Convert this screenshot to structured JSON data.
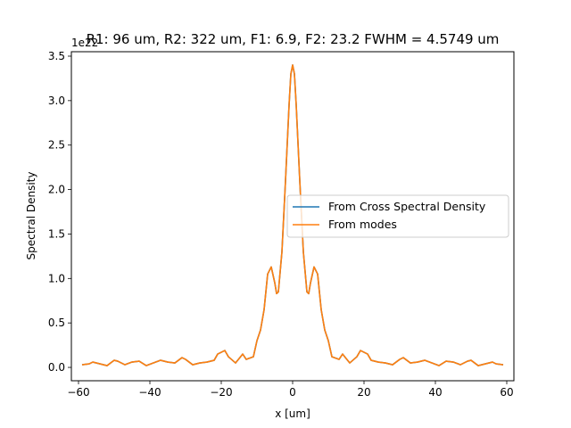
{
  "chart_data": {
    "type": "line",
    "title": "R1: 96 um, R2: 322 um, F1:  6.9, F2: 23.2  FWHM = 4.5749 um",
    "xlabel": "x [um]",
    "ylabel": "Spectral Density",
    "offset_text": "1e22",
    "xlim": [
      -62,
      62
    ],
    "ylim": [
      -0.15,
      3.55
    ],
    "xticks": [
      -60,
      -40,
      -20,
      0,
      20,
      40,
      60
    ],
    "yticks": [
      0.0,
      0.5,
      1.0,
      1.5,
      2.0,
      2.5,
      3.0,
      3.5
    ],
    "xtick_labels": [
      "−60",
      "−40",
      "−20",
      "0",
      "20",
      "40",
      "60"
    ],
    "ytick_labels": [
      "0.0",
      "0.5",
      "1.0",
      "1.5",
      "2.0",
      "2.5",
      "3.0",
      "3.5"
    ],
    "grid": false,
    "legend_position": "center-right",
    "series": [
      {
        "name": "From Cross Spectral Density",
        "color": "#1f77b4",
        "x": [
          -59,
          -57,
          -56,
          -54,
          -52,
          -50,
          -49,
          -47,
          -45,
          -43,
          -41,
          -39,
          -37,
          -35,
          -33,
          -31,
          -30,
          -28,
          -26,
          -24,
          -22,
          -21,
          -19,
          -18,
          -16,
          -15,
          -14,
          -13,
          -11,
          -10,
          -9,
          -8,
          -7,
          -6,
          -5,
          -4.5,
          -4,
          -3,
          -2,
          -1,
          -0.5,
          0,
          0.5,
          1,
          2,
          3,
          4,
          4.5,
          5,
          6,
          7,
          8,
          9,
          10,
          11,
          13,
          14,
          15,
          16,
          18,
          19,
          21,
          22,
          24,
          26,
          28,
          30,
          31,
          33,
          35,
          37,
          39,
          41,
          43,
          45,
          47,
          49,
          50,
          52,
          54,
          56,
          57,
          59
        ],
        "y": [
          0.03,
          0.04,
          0.06,
          0.04,
          0.02,
          0.08,
          0.07,
          0.03,
          0.06,
          0.07,
          0.02,
          0.05,
          0.08,
          0.06,
          0.05,
          0.11,
          0.09,
          0.03,
          0.05,
          0.06,
          0.08,
          0.15,
          0.19,
          0.12,
          0.05,
          0.1,
          0.15,
          0.09,
          0.12,
          0.3,
          0.42,
          0.65,
          1.05,
          1.13,
          0.95,
          0.83,
          0.85,
          1.3,
          2.1,
          2.95,
          3.3,
          3.4,
          3.3,
          2.95,
          2.1,
          1.3,
          0.85,
          0.83,
          0.95,
          1.13,
          1.05,
          0.65,
          0.42,
          0.3,
          0.12,
          0.09,
          0.15,
          0.1,
          0.05,
          0.12,
          0.19,
          0.15,
          0.08,
          0.06,
          0.05,
          0.03,
          0.09,
          0.11,
          0.05,
          0.06,
          0.08,
          0.05,
          0.02,
          0.07,
          0.06,
          0.03,
          0.07,
          0.08,
          0.02,
          0.04,
          0.06,
          0.04,
          0.03
        ]
      },
      {
        "name": "From modes",
        "color": "#ff7f0e",
        "x": [
          -59,
          -57,
          -56,
          -54,
          -52,
          -50,
          -49,
          -47,
          -45,
          -43,
          -41,
          -39,
          -37,
          -35,
          -33,
          -31,
          -30,
          -28,
          -26,
          -24,
          -22,
          -21,
          -19,
          -18,
          -16,
          -15,
          -14,
          -13,
          -11,
          -10,
          -9,
          -8,
          -7,
          -6,
          -5,
          -4.5,
          -4,
          -3,
          -2,
          -1,
          -0.5,
          0,
          0.5,
          1,
          2,
          3,
          4,
          4.5,
          5,
          6,
          7,
          8,
          9,
          10,
          11,
          13,
          14,
          15,
          16,
          18,
          19,
          21,
          22,
          24,
          26,
          28,
          30,
          31,
          33,
          35,
          37,
          39,
          41,
          43,
          45,
          47,
          49,
          50,
          52,
          54,
          56,
          57,
          59
        ],
        "y": [
          0.03,
          0.04,
          0.06,
          0.04,
          0.02,
          0.08,
          0.07,
          0.03,
          0.06,
          0.07,
          0.02,
          0.05,
          0.08,
          0.06,
          0.05,
          0.11,
          0.09,
          0.03,
          0.05,
          0.06,
          0.08,
          0.15,
          0.19,
          0.12,
          0.05,
          0.1,
          0.15,
          0.09,
          0.12,
          0.3,
          0.42,
          0.65,
          1.05,
          1.13,
          0.95,
          0.83,
          0.85,
          1.3,
          2.1,
          2.95,
          3.3,
          3.4,
          3.3,
          2.95,
          2.1,
          1.3,
          0.85,
          0.83,
          0.95,
          1.13,
          1.05,
          0.65,
          0.42,
          0.3,
          0.12,
          0.09,
          0.15,
          0.1,
          0.05,
          0.12,
          0.19,
          0.15,
          0.08,
          0.06,
          0.05,
          0.03,
          0.09,
          0.11,
          0.05,
          0.06,
          0.08,
          0.05,
          0.02,
          0.07,
          0.06,
          0.03,
          0.07,
          0.08,
          0.02,
          0.04,
          0.06,
          0.04,
          0.03
        ]
      }
    ]
  }
}
